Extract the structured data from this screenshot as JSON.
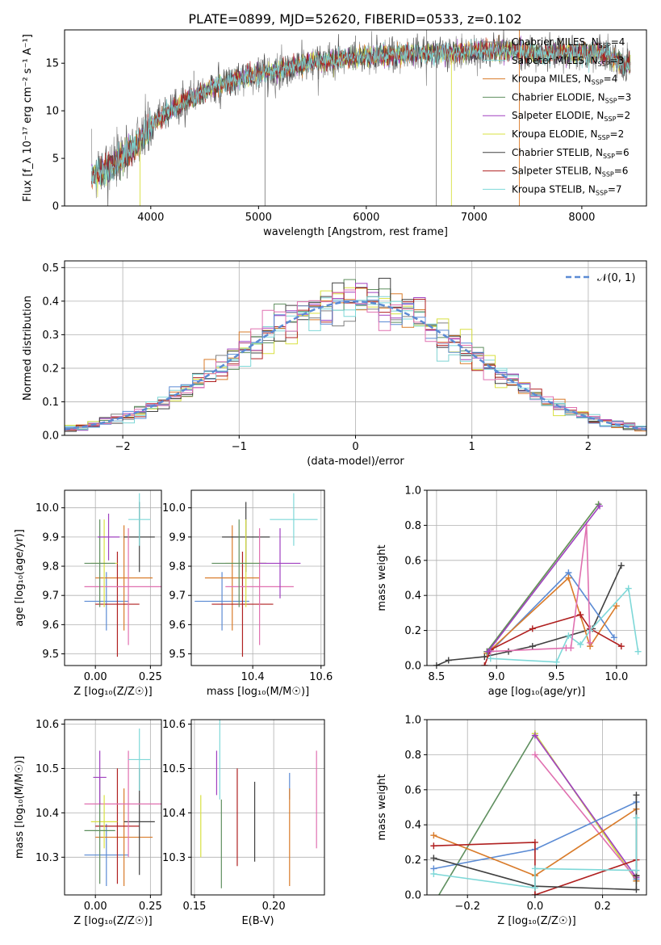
{
  "figure_title": "PLATE=0899, MJD=52620, FIBERID=0533, z=0.102",
  "legend_colors": {
    "Chabrier MILES": "#808080",
    "Salpeter MILES": "#7fd3d3",
    "Kroupa MILES": "#d97b2a",
    "Chabrier ELODIE": "#5f8f5f",
    "Salpeter ELODIE": "#a040c0",
    "Kroupa ELODIE": "#d8e040",
    "Chabrier STELIB": "#404040",
    "Salpeter STELIB": "#b02020",
    "Kroupa STELIB": "#7ed8d8"
  },
  "chart_data": [
    {
      "type": "line",
      "id": "spectrum",
      "title": "PLATE=0899, MJD=52620, FIBERID=0533, z=0.102",
      "xlabel": "wavelength [Angstrom, rest frame]",
      "ylabel": "Flux [f_λ 10⁻¹⁷ erg cm⁻² s⁻¹ A⁻¹]",
      "xlim": [
        3200,
        8600
      ],
      "ylim": [
        0,
        18.5
      ],
      "xticks": [
        4000,
        5000,
        6000,
        7000,
        8000
      ],
      "yticks": [
        0,
        5,
        10,
        15
      ],
      "grid": false,
      "legend_placement": "upper-right",
      "legend": [
        {
          "label": "Chabrier MILES, N",
          "sub": "SSP",
          "suffix": "=4",
          "color": "#808080"
        },
        {
          "label": "Salpeter MILES, N",
          "sub": "SSP",
          "suffix": "=3",
          "color": "#7fd3d3"
        },
        {
          "label": "Kroupa MILES, N",
          "sub": "SSP",
          "suffix": "=4",
          "color": "#d97b2a"
        },
        {
          "label": "Chabrier ELODIE, N",
          "sub": "SSP",
          "suffix": "=3",
          "color": "#5f8f5f"
        },
        {
          "label": "Salpeter ELODIE, N",
          "sub": "SSP",
          "suffix": "=2",
          "color": "#a040c0"
        },
        {
          "label": "Kroupa ELODIE, N",
          "sub": "SSP",
          "suffix": "=2",
          "color": "#d8e040"
        },
        {
          "label": "Chabrier STELIB, N",
          "sub": "SSP",
          "suffix": "=6",
          "color": "#404040"
        },
        {
          "label": "Salpeter STELIB, N",
          "sub": "SSP",
          "suffix": "=6",
          "color": "#b02020"
        },
        {
          "label": "Kroupa STELIB, N",
          "sub": "SSP",
          "suffix": "=7",
          "color": "#7ed8d8"
        }
      ],
      "continuum": [
        [
          3450,
          3.2
        ],
        [
          3600,
          3.9
        ],
        [
          3750,
          5.2
        ],
        [
          3900,
          6.8
        ],
        [
          4000,
          8.4
        ],
        [
          4150,
          9.8
        ],
        [
          4300,
          10.8
        ],
        [
          4500,
          12.0
        ],
        [
          4700,
          13.0
        ],
        [
          4900,
          13.6
        ],
        [
          5100,
          14.1
        ],
        [
          5300,
          14.6
        ],
        [
          5500,
          15.1
        ],
        [
          5800,
          15.5
        ],
        [
          6000,
          15.7
        ],
        [
          6200,
          15.8
        ],
        [
          6500,
          16.0
        ],
        [
          6800,
          16.1
        ],
        [
          7000,
          16.3
        ],
        [
          7200,
          16.4
        ],
        [
          7400,
          16.3
        ],
        [
          7600,
          16.0
        ],
        [
          7800,
          16.1
        ],
        [
          8000,
          16.0
        ],
        [
          8200,
          16.1
        ],
        [
          8400,
          14.8
        ]
      ],
      "spikes": [
        [
          3900,
          0
        ],
        [
          5060,
          0
        ],
        [
          6650,
          0
        ],
        [
          6790,
          0
        ],
        [
          7420,
          0
        ],
        [
          7420,
          18.5
        ],
        [
          6560,
          18.5
        ],
        [
          5900,
          17.9
        ],
        [
          4400,
          14.2
        ],
        [
          4860,
          14.8
        ]
      ]
    },
    {
      "type": "bar",
      "id": "residuals",
      "xlabel": "(data-model)/error",
      "ylabel": "Normed distribution",
      "xlim": [
        -2.5,
        2.5
      ],
      "ylim": [
        0,
        0.52
      ],
      "xticks": [
        -2,
        -1,
        0,
        1,
        2
      ],
      "yticks": [
        0.0,
        0.1,
        0.2,
        0.3,
        0.4,
        0.5
      ],
      "grid": true,
      "legend_placement": "upper-right",
      "legend": [
        {
          "label": "𝒩(0, 1)",
          "color": "#5b8bd4"
        }
      ],
      "bin_width": 0.1,
      "reference_curve": "normal(0,1)"
    },
    {
      "type": "scatter",
      "id": "age-vs-Z",
      "xlabel": "Z [log₁₀(Z/Z☉)]",
      "ylabel": "age [log₁₀(age/yr)]",
      "xlim": [
        -0.14,
        0.3
      ],
      "ylim": [
        9.46,
        10.06
      ],
      "xticks": [
        0.0,
        0.25
      ],
      "yticks": [
        9.5,
        9.6,
        9.7,
        9.8,
        9.9,
        10.0
      ],
      "grid": true,
      "points": [
        {
          "x": 0.05,
          "y": 9.68,
          "xerr": 0.1,
          "yerr": 0.1,
          "color": "#5b8bd4"
        },
        {
          "x": 0.13,
          "y": 9.76,
          "xerr": 0.13,
          "yerr": 0.18,
          "color": "#d97b2a"
        },
        {
          "x": 0.1,
          "y": 9.67,
          "xerr": 0.1,
          "yerr": 0.18,
          "color": "#b02020"
        },
        {
          "x": 0.2,
          "y": 9.9,
          "xerr": 0.07,
          "yerr": 0.12,
          "color": "#404040"
        },
        {
          "x": 0.15,
          "y": 9.73,
          "xerr": 0.2,
          "yerr": 0.2,
          "color": "#e070b0"
        },
        {
          "x": 0.2,
          "y": 9.96,
          "xerr": 0.05,
          "yerr": 0.09,
          "color": "#7ed8d8"
        },
        {
          "x": 0.04,
          "y": 9.81,
          "xerr": 0.06,
          "yerr": 0.15,
          "color": "#d8e040"
        },
        {
          "x": 0.02,
          "y": 9.81,
          "xerr": 0.07,
          "yerr": 0.15,
          "color": "#5f8f5f"
        },
        {
          "x": 0.06,
          "y": 9.9,
          "xerr": 0.05,
          "yerr": 0.08,
          "color": "#a040c0"
        }
      ]
    },
    {
      "type": "scatter",
      "id": "age-vs-mass",
      "xlabel": "mass [log₁₀(M/M☉)]",
      "ylabel": "",
      "xlim": [
        10.22,
        10.61
      ],
      "ylim": [
        9.46,
        10.06
      ],
      "xticks": [
        10.2,
        10.4,
        10.6
      ],
      "yticks": [
        9.5,
        9.6,
        9.7,
        9.8,
        9.9,
        10.0
      ],
      "grid": true,
      "points": [
        {
          "x": 10.31,
          "y": 9.68,
          "xerr": 0.08,
          "yerr": 0.1,
          "color": "#5b8bd4"
        },
        {
          "x": 10.34,
          "y": 9.76,
          "xerr": 0.08,
          "yerr": 0.18,
          "color": "#d97b2a"
        },
        {
          "x": 10.37,
          "y": 9.67,
          "xerr": 0.09,
          "yerr": 0.18,
          "color": "#b02020"
        },
        {
          "x": 10.38,
          "y": 9.9,
          "xerr": 0.07,
          "yerr": 0.12,
          "color": "#404040"
        },
        {
          "x": 10.42,
          "y": 9.73,
          "xerr": 0.1,
          "yerr": 0.2,
          "color": "#e070b0"
        },
        {
          "x": 10.52,
          "y": 9.96,
          "xerr": 0.07,
          "yerr": 0.09,
          "color": "#7ed8d8"
        },
        {
          "x": 10.38,
          "y": 9.81,
          "xerr": 0.06,
          "yerr": 0.15,
          "color": "#d8e040"
        },
        {
          "x": 10.36,
          "y": 9.81,
          "xerr": 0.08,
          "yerr": 0.15,
          "color": "#5f8f5f"
        },
        {
          "x": 10.48,
          "y": 9.81,
          "xerr": 0.06,
          "yerr": 0.12,
          "color": "#a040c0"
        }
      ]
    },
    {
      "type": "line",
      "id": "mass-weight-vs-age",
      "xlabel": "age [log₁₀(age/yr)]",
      "ylabel": "mass weight",
      "xlim": [
        8.42,
        10.25
      ],
      "ylim": [
        0,
        1.0
      ],
      "xticks": [
        8.5,
        9.0,
        9.5,
        10.0
      ],
      "yticks": [
        0.0,
        0.2,
        0.4,
        0.6,
        0.8,
        1.0
      ],
      "grid": true,
      "series": [
        {
          "color": "#404040",
          "x": [
            8.5,
            8.6,
            8.9,
            9.1,
            9.3,
            9.8,
            10.04
          ],
          "y": [
            0.0,
            0.03,
            0.05,
            0.08,
            0.11,
            0.21,
            0.57
          ]
        },
        {
          "color": "#5b8bd4",
          "x": [
            8.95,
            9.6,
            9.98
          ],
          "y": [
            0.08,
            0.53,
            0.16
          ]
        },
        {
          "color": "#d97b2a",
          "x": [
            8.92,
            9.6,
            9.78,
            10.0
          ],
          "y": [
            0.07,
            0.5,
            0.11,
            0.34
          ]
        },
        {
          "color": "#b02020",
          "x": [
            8.9,
            8.95,
            9.3,
            9.7,
            9.78,
            10.04
          ],
          "y": [
            0.0,
            0.09,
            0.21,
            0.29,
            0.21,
            0.11
          ]
        },
        {
          "color": "#7ed8d8",
          "x": [
            8.95,
            9.5,
            9.6,
            9.7,
            9.78,
            10.1,
            10.18
          ],
          "y": [
            0.04,
            0.02,
            0.17,
            0.12,
            0.2,
            0.44,
            0.08
          ]
        },
        {
          "color": "#e070b0",
          "x": [
            8.95,
            9.58,
            9.62,
            9.75,
            9.78
          ],
          "y": [
            0.08,
            0.1,
            0.1,
            0.8,
            0.13
          ]
        },
        {
          "color": "#d8e040",
          "x": [
            8.92,
            9.85
          ],
          "y": [
            0.08,
            0.92
          ]
        },
        {
          "color": "#5f8f5f",
          "x": [
            8.92,
            9.85
          ],
          "y": [
            0.08,
            0.92
          ]
        },
        {
          "color": "#a040c0",
          "x": [
            8.93,
            9.86
          ],
          "y": [
            0.08,
            0.91
          ]
        }
      ]
    },
    {
      "type": "scatter",
      "id": "mass-vs-Z",
      "xlabel": "Z [log₁₀(Z/Z☉)]",
      "ylabel": "mass [log₁₀(M/M☉)]",
      "xlim": [
        -0.14,
        0.3
      ],
      "ylim": [
        10.215,
        10.61
      ],
      "xticks": [
        0.0,
        0.25
      ],
      "yticks": [
        10.3,
        10.4,
        10.5,
        10.6
      ],
      "grid": true,
      "points": [
        {
          "x": 0.05,
          "y": 10.305,
          "xerr": 0.1,
          "yerr": 0.07,
          "color": "#5b8bd4"
        },
        {
          "x": 0.13,
          "y": 10.345,
          "xerr": 0.13,
          "yerr": 0.11,
          "color": "#d97b2a"
        },
        {
          "x": 0.1,
          "y": 10.37,
          "xerr": 0.1,
          "yerr": 0.13,
          "color": "#b02020"
        },
        {
          "x": 0.2,
          "y": 10.38,
          "xerr": 0.07,
          "yerr": 0.12,
          "color": "#404040"
        },
        {
          "x": 0.15,
          "y": 10.42,
          "xerr": 0.2,
          "yerr": 0.12,
          "color": "#e070b0"
        },
        {
          "x": 0.2,
          "y": 10.52,
          "xerr": 0.05,
          "yerr": 0.07,
          "color": "#7ed8d8"
        },
        {
          "x": 0.04,
          "y": 10.38,
          "xerr": 0.06,
          "yerr": 0.06,
          "color": "#d8e040"
        },
        {
          "x": 0.02,
          "y": 10.36,
          "xerr": 0.07,
          "yerr": 0.12,
          "color": "#5f8f5f"
        },
        {
          "x": 0.02,
          "y": 10.48,
          "xerr": 0.03,
          "yerr": 0.06,
          "color": "#a040c0"
        }
      ]
    },
    {
      "type": "scatter",
      "id": "mass-vs-EBV",
      "xlabel": "E(B-V)",
      "ylabel": "",
      "xlim": [
        0.148,
        0.232
      ],
      "ylim": [
        10.215,
        10.61
      ],
      "xticks": [
        0.15,
        0.2
      ],
      "yticks": [
        10.3,
        10.4,
        10.5,
        10.6
      ],
      "grid": true,
      "points": [
        {
          "x": 0.21,
          "y": 10.46,
          "xerr": 0,
          "yerr": 0.03,
          "color": "#5b8bd4"
        },
        {
          "x": 0.21,
          "y": 10.345,
          "xerr": 0,
          "yerr": 0.11,
          "color": "#d97b2a"
        },
        {
          "x": 0.177,
          "y": 10.39,
          "xerr": 0,
          "yerr": 0.11,
          "color": "#b02020"
        },
        {
          "x": 0.188,
          "y": 10.38,
          "xerr": 0,
          "yerr": 0.09,
          "color": "#404040"
        },
        {
          "x": 0.227,
          "y": 10.43,
          "xerr": 0,
          "yerr": 0.11,
          "color": "#e070b0"
        },
        {
          "x": 0.166,
          "y": 10.52,
          "xerr": 0,
          "yerr": 0.09,
          "color": "#7ed8d8"
        },
        {
          "x": 0.154,
          "y": 10.37,
          "xerr": 0,
          "yerr": 0.07,
          "color": "#d8e040"
        },
        {
          "x": 0.167,
          "y": 10.33,
          "xerr": 0,
          "yerr": 0.1,
          "color": "#5f8f5f"
        },
        {
          "x": 0.164,
          "y": 10.49,
          "xerr": 0,
          "yerr": 0.05,
          "color": "#a040c0"
        }
      ]
    },
    {
      "type": "line",
      "id": "mass-weight-vs-Z",
      "xlabel": "Z [log₁₀(Z/Z☉)]",
      "ylabel": "mass weight",
      "xlim": [
        -0.32,
        0.33
      ],
      "ylim": [
        0,
        1.0
      ],
      "xticks": [
        -0.2,
        0.0,
        0.2
      ],
      "yticks": [
        0.0,
        0.2,
        0.4,
        0.6,
        0.8,
        1.0
      ],
      "grid": true,
      "series": [
        {
          "color": "#5f8f5f",
          "x": [
            -0.3,
            0.0,
            0.3
          ],
          "y": [
            -0.05,
            0.92,
            0.08
          ]
        },
        {
          "color": "#d8e040",
          "x": [
            0.0,
            0.3
          ],
          "y": [
            0.92,
            0.08
          ]
        },
        {
          "color": "#a040c0",
          "x": [
            0.0,
            0.3
          ],
          "y": [
            0.91,
            0.1
          ]
        },
        {
          "color": "#e070b0",
          "x": [
            0.0,
            0.3
          ],
          "y": [
            0.8,
            0.09
          ]
        },
        {
          "color": "#5b8bd4",
          "x": [
            -0.3,
            0.0,
            0.3,
            0.3
          ],
          "y": [
            0.15,
            0.26,
            0.53,
            0.09
          ]
        },
        {
          "color": "#d97b2a",
          "x": [
            -0.3,
            0.0,
            0.3,
            0.3
          ],
          "y": [
            0.34,
            0.11,
            0.49,
            0.08
          ]
        },
        {
          "color": "#b02020",
          "x": [
            -0.3,
            0.0,
            0.0,
            0.3,
            0.3
          ],
          "y": [
            0.28,
            0.3,
            0.0,
            0.2,
            0.11
          ]
        },
        {
          "color": "#404040",
          "x": [
            -0.3,
            0.0,
            0.3,
            0.3,
            0.3
          ],
          "y": [
            0.21,
            0.05,
            0.03,
            0.57,
            0.11
          ]
        },
        {
          "color": "#7ed8d8",
          "x": [
            -0.3,
            0.0,
            0.0,
            0.3,
            0.3
          ],
          "y": [
            0.12,
            0.04,
            0.15,
            0.14,
            0.44
          ]
        }
      ]
    }
  ]
}
